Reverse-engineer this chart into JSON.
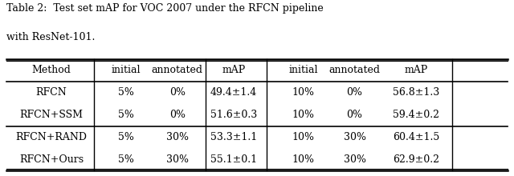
{
  "title_line1": "Table 2:  Test set mAP for VOC 2007 under the RFCN pipeline",
  "title_line2": "with ResNet-101.",
  "rows": [
    [
      "RFCN",
      "5%",
      "0%",
      "49.4±1.4",
      "10%",
      "0%",
      "56.8±1.3"
    ],
    [
      "RFCN+SSM",
      "5%",
      "0%",
      "51.6±0.3",
      "10%",
      "0%",
      "59.4±0.2"
    ],
    [
      "RFCN+RAND",
      "5%",
      "30%",
      "53.3±1.1",
      "10%",
      "30%",
      "60.4±1.5"
    ],
    [
      "RFCN+Ours",
      "5%",
      "30%",
      "55.1±0.1",
      "10%",
      "30%",
      "62.9±0.2"
    ]
  ],
  "figsize": [
    6.4,
    2.2
  ],
  "dpi": 100,
  "bg_color": "#ffffff",
  "font_size": 9.0,
  "title_font_size": 9.0
}
